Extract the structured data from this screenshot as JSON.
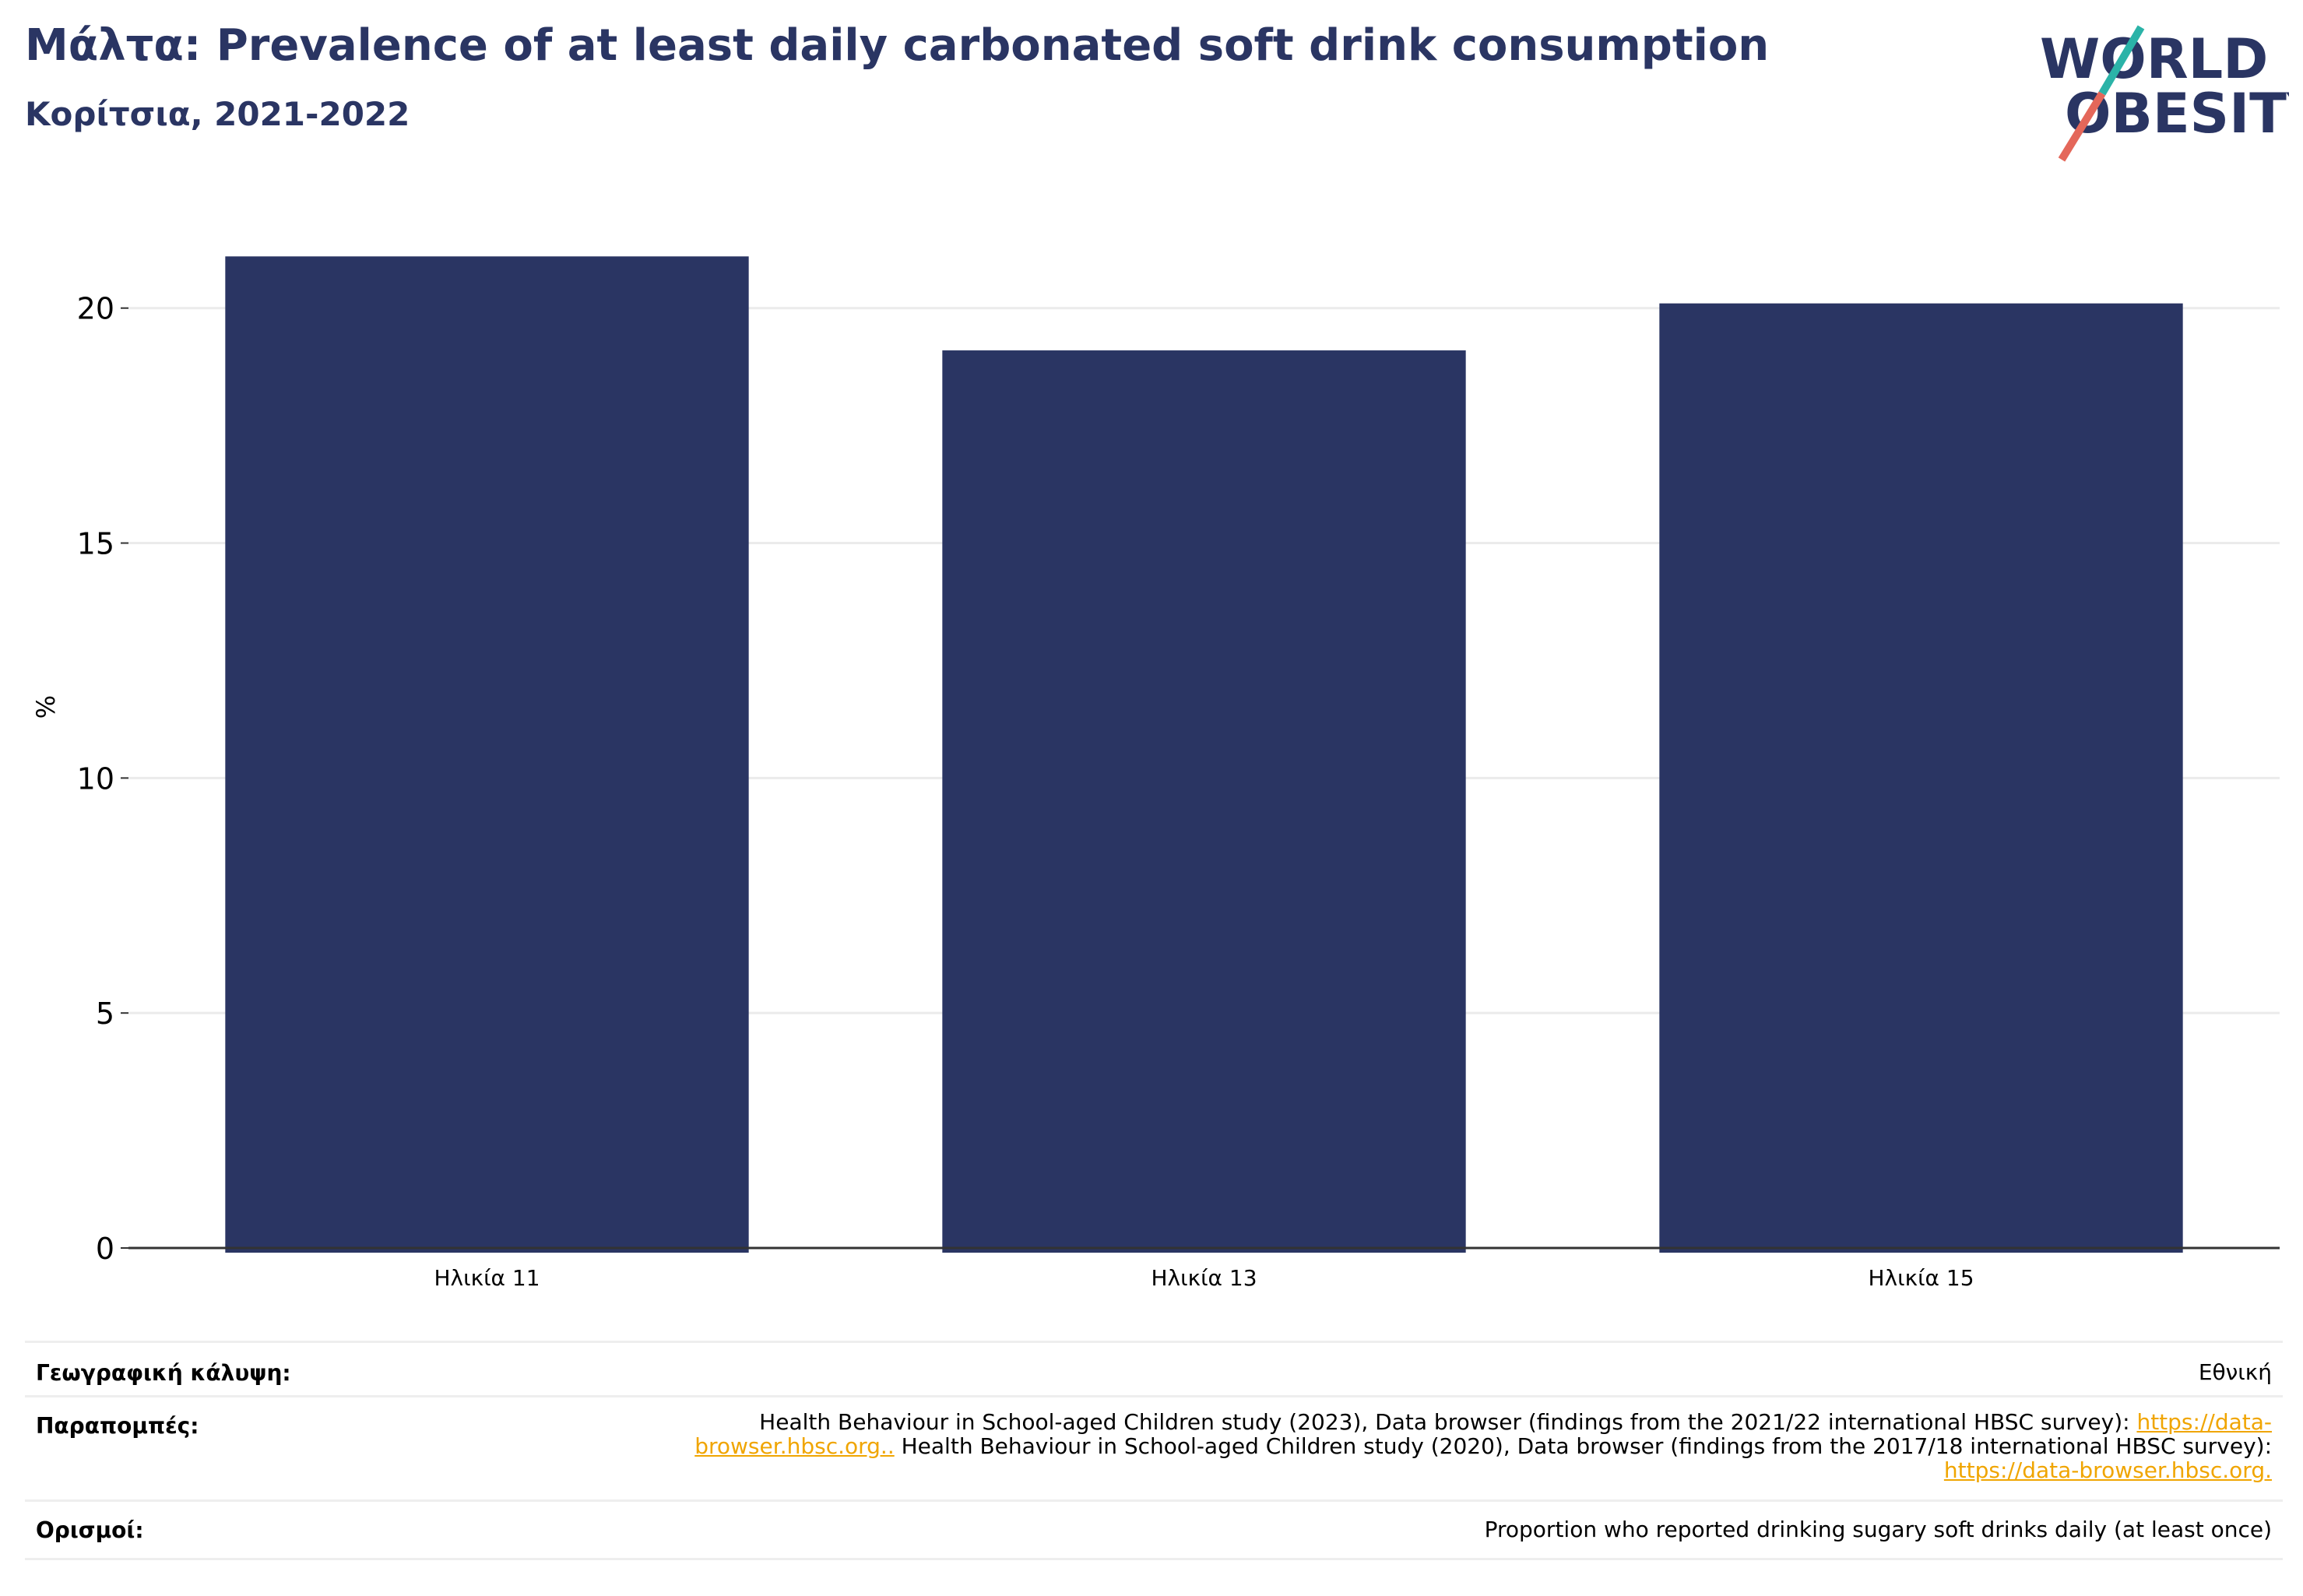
{
  "header": {
    "title": "Μάλτα: Prevalence of at least daily carbonated soft drink consumption",
    "subtitle": "Κορίτσια, 2021-2022"
  },
  "logo": {
    "line1": "WORLD",
    "line2": "OBESITY"
  },
  "chart_data": {
    "type": "bar",
    "categories": [
      "Ηλικία 11",
      "Ηλικία 13",
      "Ηλικία 15"
    ],
    "values": [
      21.1,
      19.1,
      20.1
    ],
    "ylabel": "%",
    "ylim": [
      0,
      22
    ],
    "yticks": [
      0,
      5,
      10,
      15,
      20
    ],
    "grid": true,
    "bar_color": "#2a3563"
  },
  "metadata": {
    "coverage_label": "Γεωγραφική κάλυψη:",
    "coverage_value": "Εθνική",
    "references_label": "Παραπομπές:",
    "references_text1": "Health Behaviour in School-aged Children study (2023), Data browser (findings from the 2021/22 international HBSC survey): ",
    "references_link1": "https://data-browser.hbsc.org..",
    "references_text2": " Health Behaviour in School-aged Children study (2020), Data browser (findings from the 2017/18 international HBSC survey): ",
    "references_link2": "https://data-browser.hbsc.org.",
    "definitions_label": "Ορισμοί:",
    "definitions_value": "Proportion who reported drinking sugary soft drinks daily (at least once)"
  },
  "colors": {
    "brand_navy": "#2a3563",
    "brand_teal": "#2bb3a8",
    "brand_coral": "#e4675a",
    "link": "#f0a500"
  }
}
